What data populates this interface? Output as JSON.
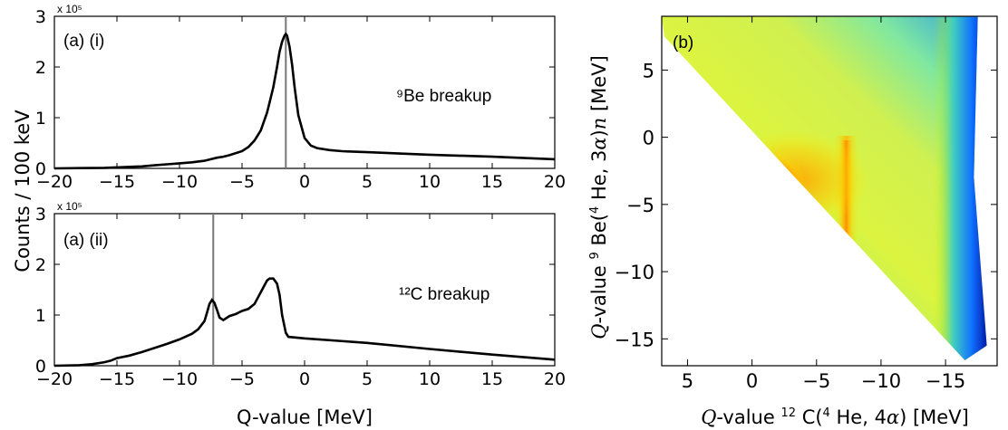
{
  "chart_data": [
    {
      "type": "line",
      "panel_label": "(a) (i)",
      "annotation": "⁹Be breakup",
      "xlim": [
        -20,
        20
      ],
      "ylim": [
        0,
        3
      ],
      "x_ticks": [
        -20,
        -15,
        -10,
        -5,
        0,
        5,
        10,
        15,
        20
      ],
      "y_ticks": [
        0,
        1,
        2,
        3
      ],
      "y_multiplier": "x 10⁵",
      "vertical_line_x": -1.5,
      "series": [
        {
          "x": [
            -20,
            -18,
            -16,
            -15,
            -14,
            -13,
            -12,
            -11,
            -10,
            -9,
            -8,
            -7.5,
            -7,
            -6.5,
            -6,
            -5,
            -4.5,
            -4,
            -3.5,
            -3,
            -2.8,
            -2.5,
            -2.2,
            -2,
            -1.8,
            -1.6,
            -1.5,
            -1.4,
            -1.2,
            -1,
            -0.8,
            -0.5,
            0,
            0.5,
            1,
            2,
            3,
            5,
            8,
            10,
            15,
            20
          ],
          "values": [
            0,
            0.005,
            0.01,
            0.02,
            0.03,
            0.04,
            0.06,
            0.08,
            0.1,
            0.12,
            0.15,
            0.18,
            0.21,
            0.23,
            0.26,
            0.34,
            0.42,
            0.55,
            0.75,
            1.1,
            1.3,
            1.6,
            2.0,
            2.3,
            2.5,
            2.62,
            2.65,
            2.62,
            2.4,
            2.05,
            1.6,
            1.05,
            0.6,
            0.45,
            0.4,
            0.36,
            0.34,
            0.32,
            0.29,
            0.27,
            0.23,
            0.18
          ]
        }
      ]
    },
    {
      "type": "line",
      "panel_label": "(a) (ii)",
      "annotation": "¹²C breakup",
      "xlim": [
        -20,
        20
      ],
      "ylim": [
        0,
        3
      ],
      "x_ticks": [
        -20,
        -15,
        -10,
        -5,
        0,
        5,
        10,
        15,
        20
      ],
      "y_ticks": [
        0,
        1,
        2,
        3
      ],
      "y_multiplier": "x 10⁵",
      "vertical_line_x": -7.3,
      "series": [
        {
          "x": [
            -20,
            -18,
            -17,
            -16,
            -15.5,
            -15,
            -14,
            -13,
            -12,
            -11,
            -10,
            -9,
            -8.5,
            -8,
            -7.8,
            -7.6,
            -7.4,
            -7.2,
            -7,
            -6.8,
            -6.5,
            -6,
            -5.5,
            -5,
            -4.5,
            -4,
            -3.5,
            -3,
            -2.8,
            -2.5,
            -2.2,
            -2,
            -1.8,
            -1.5,
            -1.3,
            0,
            5,
            10,
            15,
            20
          ],
          "values": [
            0,
            0.01,
            0.03,
            0.07,
            0.1,
            0.15,
            0.2,
            0.27,
            0.35,
            0.43,
            0.52,
            0.63,
            0.72,
            0.88,
            1.05,
            1.22,
            1.3,
            1.24,
            1.1,
            0.95,
            0.9,
            0.98,
            1.02,
            1.08,
            1.12,
            1.22,
            1.45,
            1.68,
            1.72,
            1.72,
            1.62,
            1.4,
            1.0,
            0.65,
            0.57,
            0.54,
            0.45,
            0.33,
            0.22,
            0.12
          ]
        }
      ]
    },
    {
      "type": "heatmap",
      "panel_label": "(b)",
      "xlabel": "Q-value ¹²C(⁴He, 4α) [MeV]",
      "ylabel": "Q-value ⁹Be(⁴He, 3α)n [MeV]",
      "x_reversed": true,
      "y_reversed": true,
      "xlim": [
        7,
        -19
      ],
      "ylim": [
        9,
        -17
      ],
      "x_ticks": [
        5,
        0,
        -5,
        -10,
        -15
      ],
      "y_ticks": [
        -15,
        -10,
        -5,
        0,
        5
      ],
      "hotspot": {
        "x": -2.5,
        "y": -1.5
      },
      "band_x": -7.3,
      "edge_x": -16.5
    }
  ],
  "shared_ylabel": "Counts / 100 keV",
  "shared_xlabel": "Q-value [MeV]",
  "colors": {
    "line": "#000000",
    "marker_line": "#777777"
  }
}
